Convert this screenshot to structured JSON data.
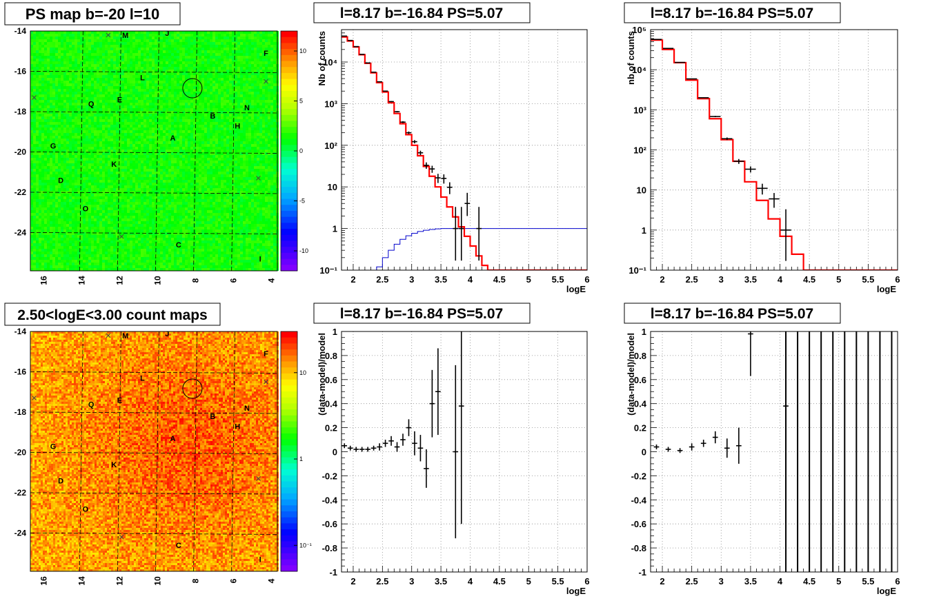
{
  "titles": {
    "map_top": "PS map b=-20 l=10",
    "map_bottom": "2.50<logE<3.00 count maps",
    "spec_mid": "l=8.17 b=-16.84 PS=5.07",
    "spec_right": "l=8.17 b=-16.84 PS=5.07",
    "res_mid": "l=8.17 b=-16.84 PS=5.07",
    "res_right": "l=8.17 b=-16.84 PS=5.07"
  },
  "colors": {
    "data": "#000000",
    "model": "#ff0000",
    "background_model": "#0000cc"
  },
  "map_common": {
    "x_ticks": [
      "16",
      "14",
      "12",
      "10",
      "8",
      "6",
      "4"
    ],
    "y_ticks": [
      "-14",
      "-16",
      "-18",
      "-20",
      "-22",
      "-24"
    ],
    "circle": {
      "l": 8.17,
      "b": -16.84
    },
    "labels": [
      {
        "t": "M",
        "l": 11.7,
        "b": -14.2
      },
      {
        "t": "J",
        "l": 9.5,
        "b": -14.1
      },
      {
        "t": "F",
        "l": 4.3,
        "b": -15.1
      },
      {
        "t": "L",
        "l": 10.8,
        "b": -16.3
      },
      {
        "t": "Q",
        "l": 13.5,
        "b": -17.6
      },
      {
        "t": "E",
        "l": 12.0,
        "b": -17.4
      },
      {
        "t": "N",
        "l": 5.3,
        "b": -17.8
      },
      {
        "t": "B",
        "l": 7.1,
        "b": -18.2
      },
      {
        "t": "H",
        "l": 5.8,
        "b": -18.7
      },
      {
        "t": "A",
        "l": 9.2,
        "b": -19.3
      },
      {
        "t": "G",
        "l": 15.5,
        "b": -19.7
      },
      {
        "t": "K",
        "l": 12.3,
        "b": -20.6
      },
      {
        "t": "D",
        "l": 15.1,
        "b": -21.4
      },
      {
        "t": "O",
        "l": 13.8,
        "b": -22.8
      },
      {
        "t": "C",
        "l": 8.9,
        "b": -24.6
      },
      {
        "t": "I",
        "l": 4.6,
        "b": -25.3
      }
    ],
    "crosses": [
      {
        "l": 12.6,
        "b": -14.2
      },
      {
        "l": 4.3,
        "b": -16.5
      },
      {
        "l": 16.5,
        "b": -17.3
      },
      {
        "l": 4.7,
        "b": -21.3
      },
      {
        "l": 11.9,
        "b": -24.2
      }
    ]
  },
  "map_top": {
    "colorbar_ticks": [
      "10",
      "5",
      "0",
      "-5",
      "-10"
    ],
    "colorbar_values": [
      10,
      5,
      0,
      -5,
      -10
    ],
    "range": [
      -12,
      12
    ]
  },
  "map_bottom": {
    "colorbar_ticks": [
      "10",
      "1",
      "10⁻¹"
    ],
    "colorbar_values": [
      10,
      1,
      0.1
    ],
    "range": [
      0.05,
      30
    ]
  },
  "chart_data": [
    {
      "type": "line",
      "title": "l=8.17 b=-16.84 PS=5.07",
      "xlabel": "logE",
      "ylabel": "Nb of counts",
      "xlim": [
        1.8,
        6.0
      ],
      "ylim": [
        0.1,
        60000
      ],
      "yscale": "log",
      "x_ticks": [
        "2",
        "2.5",
        "3",
        "3.5",
        "4",
        "4.5",
        "5",
        "5.5",
        "6"
      ],
      "y_ticks": [
        "10⁻¹",
        "1",
        "10",
        "10²",
        "10³",
        "10⁴"
      ],
      "grid": true,
      "bin_edges": [
        1.8,
        1.9,
        2.0,
        2.1,
        2.2,
        2.3,
        2.4,
        2.5,
        2.6,
        2.7,
        2.8,
        2.9,
        3.0,
        3.1,
        3.2,
        3.3,
        3.4,
        3.5,
        3.6,
        3.7,
        3.8,
        3.9,
        4.0,
        4.1,
        4.2,
        4.3,
        4.4,
        4.5,
        4.6,
        4.7,
        4.8,
        4.9,
        5.0,
        5.1,
        5.2,
        5.3,
        5.4,
        5.5,
        5.6,
        5.7,
        5.8,
        5.9,
        6.0
      ],
      "model": [
        40000,
        32000,
        23000,
        15000,
        9300,
        5500,
        3200,
        1900,
        1050,
        580,
        330,
        180,
        100,
        56,
        31,
        18,
        10,
        5.7,
        3.3,
        1.9,
        1.1,
        0.65,
        0.38,
        0.22,
        0.13,
        0.1,
        0.1,
        0.1,
        0.1,
        0.1,
        0.1,
        0.1,
        0.1,
        0.1,
        0.1,
        0.1,
        0.1,
        0.1,
        0.1,
        0.1,
        0.1,
        0.1
      ],
      "background_model": [
        0.1,
        0.1,
        0.1,
        0.1,
        0.1,
        0.1,
        0.12,
        0.2,
        0.3,
        0.42,
        0.55,
        0.67,
        0.77,
        0.85,
        0.91,
        0.95,
        0.98,
        1.0,
        1.0,
        1.0,
        1.0,
        1.0,
        1.0,
        1.0,
        1.0,
        1.0,
        1.0,
        1.0,
        1.0,
        1.0,
        1.0,
        1.0,
        1.0,
        1.0,
        1.0,
        1.0,
        1.0,
        1.0,
        1.0,
        1.0,
        1.0,
        1.0
      ],
      "series": [
        {
          "name": "data",
          "x": [
            1.85,
            1.95,
            2.05,
            2.15,
            2.25,
            2.35,
            2.45,
            2.55,
            2.65,
            2.75,
            2.85,
            2.95,
            3.05,
            3.15,
            3.25,
            3.35,
            3.45,
            3.55,
            3.65,
            3.75,
            3.85,
            3.95,
            4.15
          ],
          "y": [
            42000,
            33000,
            23500,
            15300,
            9500,
            5700,
            3350,
            2000,
            1120,
            640,
            360,
            200,
            122,
            66,
            33,
            27,
            16.5,
            16,
            9.8,
            1,
            1,
            4,
            1
          ],
          "err_lo": [
            200,
            180,
            150,
            120,
            95,
            75,
            57,
            44,
            33,
            25,
            19,
            14,
            11,
            8,
            5.8,
            5.2,
            4.1,
            4,
            3.1,
            0.83,
            0.83,
            2,
            0.83
          ],
          "err_hi": [
            200,
            180,
            150,
            120,
            95,
            75,
            57,
            44,
            33,
            25,
            19,
            14,
            11,
            8,
            5.8,
            5.2,
            4.1,
            4,
            3.1,
            2.3,
            2.3,
            3.2,
            2.3
          ]
        }
      ]
    },
    {
      "type": "line",
      "title": "l=8.17 b=-16.84 PS=5.07",
      "xlabel": "logE",
      "ylabel": "nb of counts",
      "xlim": [
        1.8,
        6.0
      ],
      "ylim": [
        0.1,
        100000
      ],
      "yscale": "log",
      "x_ticks": [
        "2",
        "2.5",
        "3",
        "3.5",
        "4",
        "4.5",
        "5",
        "5.5",
        "6"
      ],
      "y_ticks": [
        "10⁻¹",
        "1",
        "10",
        "10²",
        "10³",
        "10⁴",
        "10⁵"
      ],
      "grid": true,
      "bin_edges": [
        1.8,
        2.0,
        2.2,
        2.4,
        2.6,
        2.8,
        3.0,
        3.2,
        3.4,
        3.6,
        3.8,
        4.0,
        4.2,
        4.4,
        4.6,
        4.8,
        5.0,
        5.2,
        5.4,
        5.6,
        5.8,
        6.0
      ],
      "model": [
        55000,
        32000,
        15000,
        5500,
        1900,
        600,
        180,
        52,
        16,
        5.5,
        1.9,
        0.7,
        0.25,
        0.1,
        0.1,
        0.1,
        0.1,
        0.1,
        0.1,
        0.1,
        0.1
      ],
      "series": [
        {
          "name": "data",
          "x": [
            1.9,
            2.1,
            2.3,
            2.5,
            2.7,
            2.9,
            3.1,
            3.3,
            3.5,
            3.7,
            3.9,
            4.1
          ],
          "y": [
            57000,
            34000,
            15200,
            5900,
            2000,
            680,
            190,
            52,
            33,
            11,
            6,
            1
          ],
          "err_lo": [
            240,
            185,
            125,
            77,
            45,
            26,
            14,
            7.2,
            5.7,
            3.3,
            2.4,
            0.83
          ],
          "err_hi": [
            240,
            185,
            125,
            77,
            45,
            26,
            14,
            7.2,
            5.7,
            3.3,
            2.4,
            2.3
          ]
        }
      ]
    },
    {
      "type": "scatter",
      "title": "l=8.17 b=-16.84 PS=5.07",
      "xlabel": "logE",
      "ylabel": "(data-model)/model",
      "xlim": [
        1.8,
        6.0
      ],
      "ylim": [
        -1,
        1
      ],
      "x_ticks": [
        "2",
        "2.5",
        "3",
        "3.5",
        "4",
        "4.5",
        "5",
        "5.5",
        "6"
      ],
      "y_ticks": [
        "-1",
        "-0.8",
        "-0.6",
        "-0.4",
        "-0.2",
        "0",
        "0.2",
        "0.4",
        "0.6",
        "0.8",
        "1"
      ],
      "grid": true,
      "series": [
        {
          "name": "residual",
          "x": [
            1.85,
            1.95,
            2.05,
            2.15,
            2.25,
            2.35,
            2.45,
            2.55,
            2.65,
            2.75,
            2.85,
            2.95,
            3.05,
            3.15,
            3.25,
            3.35,
            3.45,
            3.75,
            3.85
          ],
          "y": [
            0.05,
            0.03,
            0.02,
            0.02,
            0.02,
            0.03,
            0.04,
            0.07,
            0.09,
            0.04,
            0.1,
            0.2,
            0.07,
            0.03,
            -0.14,
            0.4,
            0.5,
            0.0,
            0.38
          ],
          "err": [
            0.02,
            0.02,
            0.02,
            0.02,
            0.02,
            0.02,
            0.03,
            0.03,
            0.04,
            0.04,
            0.05,
            0.07,
            0.1,
            0.11,
            0.16,
            0.28,
            0.36,
            0.72,
            0.98
          ]
        }
      ]
    },
    {
      "type": "scatter",
      "title": "l=8.17 b=-16.84 PS=5.07",
      "xlabel": "logE",
      "ylabel": "(data-model)/model",
      "xlim": [
        1.8,
        6.0
      ],
      "ylim": [
        -1,
        1
      ],
      "x_ticks": [
        "2",
        "2.5",
        "3",
        "3.5",
        "4",
        "4.5",
        "5",
        "5.5",
        "6"
      ],
      "y_ticks": [
        "-1",
        "-0.8",
        "-0.6",
        "-0.4",
        "-0.2",
        "0",
        "0.2",
        "0.4",
        "0.6",
        "0.8",
        "1"
      ],
      "grid": true,
      "vertical_lines_x": [
        4.1,
        4.3,
        4.5,
        4.7,
        4.9,
        5.1,
        5.3,
        5.5,
        5.7,
        5.9
      ],
      "series": [
        {
          "name": "residual",
          "x": [
            1.9,
            2.1,
            2.3,
            2.5,
            2.7,
            2.9,
            3.1,
            3.3,
            3.5,
            4.1
          ],
          "y": [
            0.04,
            0.02,
            0.01,
            0.04,
            0.07,
            0.12,
            0.03,
            0.05,
            0.98,
            0.38
          ],
          "err": [
            0.02,
            0.02,
            0.02,
            0.03,
            0.03,
            0.05,
            0.08,
            0.15,
            0.35,
            0.98
          ]
        }
      ]
    }
  ]
}
